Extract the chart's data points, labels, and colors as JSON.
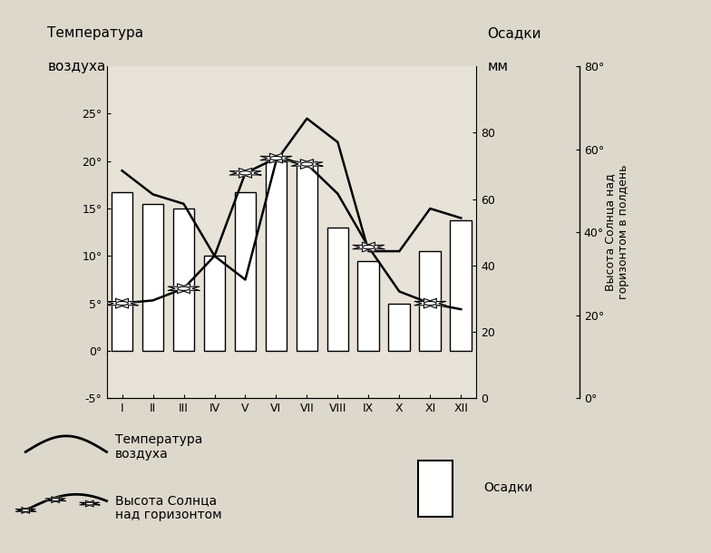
{
  "months": [
    "I",
    "II",
    "III",
    "IV",
    "V",
    "VI",
    "VII",
    "VIII",
    "IX",
    "X",
    "XI",
    "XII"
  ],
  "temperature": [
    19.0,
    16.5,
    15.5,
    10.0,
    7.5,
    20.0,
    24.5,
    22.0,
    10.5,
    10.5,
    15.0,
    14.0
  ],
  "precipitation_mm": [
    67,
    62,
    60,
    40,
    67,
    80,
    80,
    52,
    38,
    20,
    42,
    55
  ],
  "sun_altitude_deg": [
    16,
    17,
    21,
    32,
    60,
    65,
    63,
    53,
    35,
    20,
    16,
    14
  ],
  "sun_icon_months": [
    0,
    2,
    4,
    5,
    6,
    8,
    10
  ],
  "temp_ylim": [
    -5,
    30
  ],
  "precip_ylim": [
    0,
    100
  ],
  "sun_ylim": [
    0,
    80
  ],
  "left_yticks": [
    -5,
    0,
    5,
    10,
    15,
    20,
    25
  ],
  "right_yticks_precip": [
    0,
    20,
    40,
    60,
    80
  ],
  "right_yticks_sun": [
    0,
    20,
    40,
    60,
    80
  ],
  "bg_color": "#ddd8cc",
  "plot_bg_color": "#e8e3d8",
  "bar_color": "white",
  "bar_edge_color": "black",
  "temp_line_color": "black",
  "sun_line_color": "black",
  "title_left1": "Температура",
  "title_left2": "воздуха",
  "title_right1": "Осадки",
  "title_right2": "мм",
  "title_right3": "Высота Солнца над",
  "title_right4": "горизонтом в полдень",
  "legend_temp": "Температура\nвоздуха",
  "legend_sun": "Высота Солнца\nнад горизонтом",
  "legend_precip": "Осадки"
}
